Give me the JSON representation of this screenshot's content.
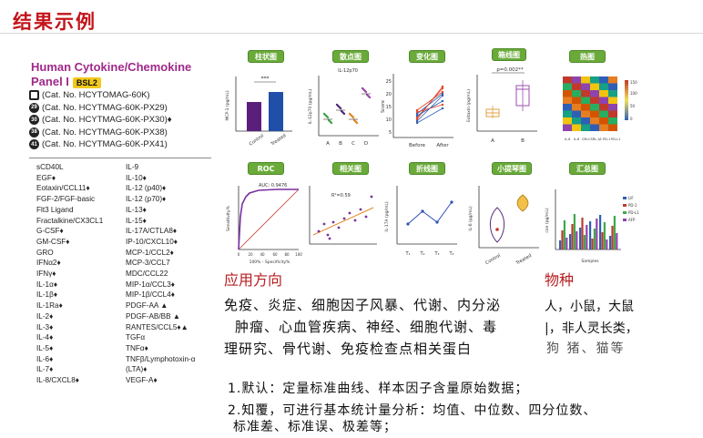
{
  "page_title": "结果示例",
  "panel": {
    "title_line1": "Human Cytokine/Chemokine",
    "title_line2": "Panel I",
    "badge": "BSL2"
  },
  "catalog": [
    {
      "mark": "",
      "text": "(Cat. No. HCYTOMAG-60K)"
    },
    {
      "mark": "29",
      "text": "(Cat. No. HCYTMAG-60K-PX29)"
    },
    {
      "mark": "30",
      "text": "(Cat. No. HCYTMAG-60K-PX30)♦"
    },
    {
      "mark": "38",
      "text": "(Cat. No. HCYTMAG-60K-PX38)"
    },
    {
      "mark": "41",
      "text": "(Cat. No. HCYTMAG-60K-PX41)"
    }
  ],
  "analytes_a": [
    "sCD40L",
    "EGF♦",
    "Eotaxin/CCL11♦",
    "FGF-2/FGF-basic",
    "Flt3 Ligand",
    "Fractalkine/CX3CL1",
    "G-CSF♦",
    "GM-CSF♦",
    "GRO",
    "IFNα2♦",
    "IFNγ♦",
    "IL-1α♦",
    "IL-1β♦",
    "IL-1Ra♦",
    "IL-2♦",
    "IL-3♦",
    "IL-4♦",
    "IL-5♦",
    "IL-6♦",
    "IL-7♦",
    "IL-8/CXCL8♦"
  ],
  "analytes_b": [
    "IL-9",
    "IL-10♦",
    "IL-12 (p40)♦",
    "IL-12 (p70)♦",
    "IL-13♦",
    "IL-15♦",
    "IL-17A/CTLA8♦",
    "IP-10/CXCL10♦",
    "MCP-1/CCL2♦",
    "MCP-3/CCL7",
    "MDC/CCL22",
    "MIP-1α/CCL3♦",
    "MIP-1β/CCL4♦",
    "PDGF-AA ▲",
    "PDGF-AB/BB ▲",
    "RANTES/CCL5♦▲",
    "TGFα",
    "TNFα♦",
    "TNFβ/Lymphotoxin-α (LTA)♦",
    "VEGF-A♦"
  ],
  "chart_labels": {
    "bar": "柱状图",
    "scatter": "散点图",
    "change": "变化图",
    "box": "箱线图",
    "heat": "热图",
    "roc": "ROC",
    "corr": "相关图",
    "line": "折线图",
    "violin": "小提琴图",
    "summary": "汇总图"
  },
  "mini_text": {
    "bar_sig": "***",
    "bar_ylabel": "MCP-1 (pg/mL)",
    "bar_x1": "Control",
    "bar_x2": "Treated",
    "scatter_title": "IL-12p70",
    "scatter_ylabel": "IL-12p70 (pg/mL)",
    "scatter_x": [
      "A",
      "B",
      "C",
      "D"
    ],
    "change_ylabel": "Score",
    "change_x1": "Before",
    "change_x2": "After",
    "box_sig": "p=0.002**",
    "box_ylabel": "Eotaxin (pg/mL)",
    "box_x1": "A",
    "box_x2": "B",
    "heat_x": [
      "IL-6",
      "IL-8",
      "GM-CSF",
      "IL-1β",
      "PD-1",
      "PD-L1"
    ],
    "heat_scale": [
      "150",
      "100",
      "50",
      "0"
    ],
    "roc_auc": "AUC: 0.9476",
    "roc_ylabel": "Sensitivity%",
    "roc_xlabel": "100% - Specificity%",
    "roc_ticks": [
      "0",
      "20",
      "40",
      "60",
      "80",
      "100"
    ],
    "corr_r2": "R²=0.59",
    "line_ylabel": "IL-17A (pg/mL)",
    "line_x": [
      "T₁",
      "T₂",
      "T₃",
      "T₄"
    ],
    "violin_ylabel": "IL-6 (pg/mL)",
    "violin_x1": "Control",
    "violin_x2": "Treated",
    "summary_ylabel": "con (pg/mL)",
    "summary_xlabel": "Samples",
    "summary_legend": [
      "LIF",
      "PD-1",
      "PD-L1",
      "AFP"
    ]
  },
  "application": {
    "heading": "应用方向",
    "line1": "免疫、炎症、细胞因子风暴、代谢、内分泌",
    "line2": "肿瘤、心血管疾病、神经、细胞代谢、毒",
    "line3": "理研究、骨代谢、免疫检查点相关蛋白"
  },
  "species": {
    "heading": "物种",
    "line1": "人，小鼠，大鼠",
    "line2": "|，非人灵长类，",
    "line3": "狗  猪、猫等"
  },
  "notes": {
    "note1": "1.默认：定量标准曲线、样本因子含量原始数据；",
    "note2": "2.知覆，可进行基本统计量分析：均值、中位数、四分位数、",
    "note3": "标准差、标准误、极差等；"
  },
  "colors": {
    "title_red": "#c4141a",
    "panel_purple": "#a0288a",
    "badge_yellow": "#f2c81c",
    "label_green": "#6aaa3a"
  }
}
